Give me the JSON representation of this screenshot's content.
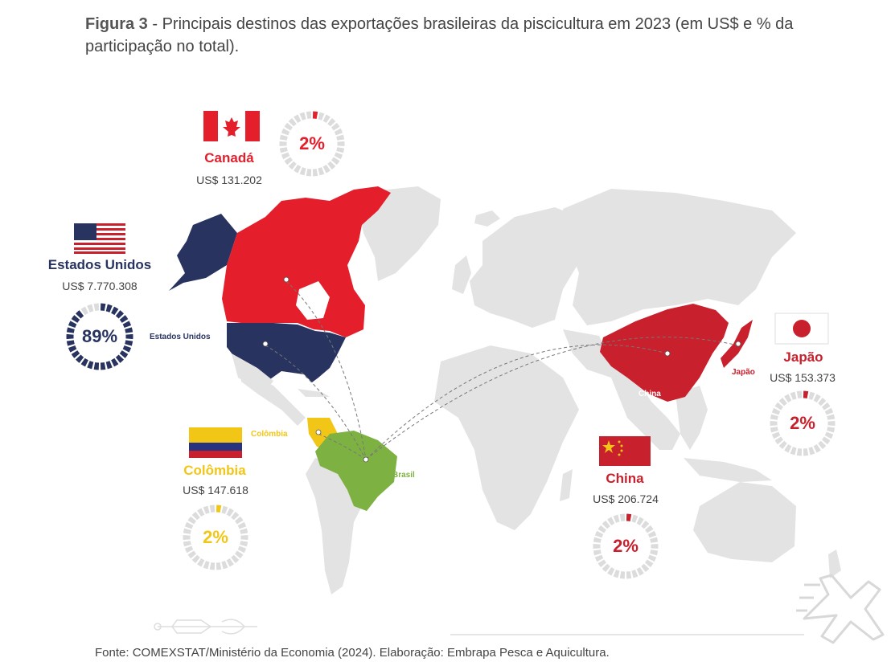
{
  "title": {
    "bold": "Figura 3",
    "rest": " - Principais destinos das exportações brasileiras da piscicultura em 2023 (em US$ e % da participação no total)."
  },
  "source": "Fonte: COMEXSTAT/Ministério da Economia (2024). Elaboração: Embrapa Pesca e Aquicultura.",
  "colors": {
    "usa": "#283360",
    "canada": "#e41e2b",
    "china": "#c8202c",
    "colombia": "#f2c617",
    "brasil": "#7db242",
    "land": "#e3e3e3",
    "ring": "#dcdcdc"
  },
  "destinations": [
    {
      "key": "canada",
      "name": "Canadá",
      "value": "US$ 131.202",
      "share": "2%",
      "share_pct": 2,
      "flag": "canada-flag"
    },
    {
      "key": "usa",
      "name": "Estados Unidos",
      "value": "US$ 7.770.308",
      "share": "89%",
      "share_pct": 89,
      "flag": "usa-flag"
    },
    {
      "key": "colombia",
      "name": "Colômbia",
      "value": "US$ 147.618",
      "share": "2%",
      "share_pct": 2,
      "flag": "colombia-flag"
    },
    {
      "key": "china",
      "name": "China",
      "value": "US$ 206.724",
      "share": "2%",
      "share_pct": 2,
      "flag": "china-flag"
    },
    {
      "key": "japao",
      "name": "Japão",
      "value": "US$ 153.373",
      "share": "2%",
      "share_pct": 2,
      "flag": "japan-flag"
    }
  ],
  "map_labels": {
    "usa": "Estados Unidos",
    "colombia": "Colômbia",
    "brasil": "Brasil",
    "china": "China",
    "japao": "Japão"
  },
  "icons": [
    "airplane-icon",
    "fish-icon",
    "map-pin-icon"
  ]
}
